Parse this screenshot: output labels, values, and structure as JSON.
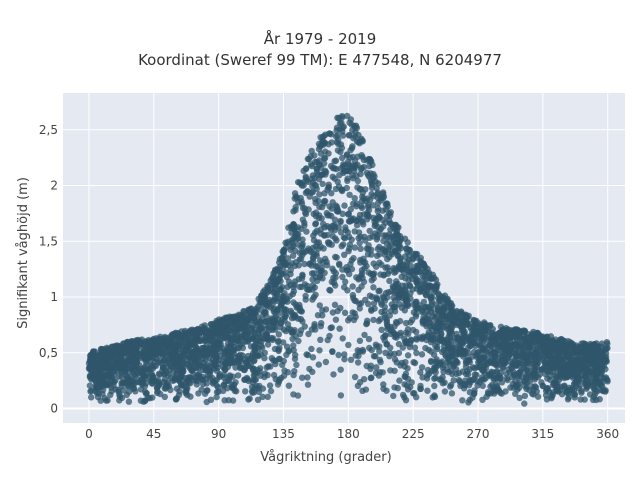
{
  "chart_data": {
    "type": "scatter",
    "title": "År 1979 - 2019",
    "subtitle": "Koordinat (Sweref 99 TM): E 477548, N 6204977",
    "xlabel": "Vågriktning (grader)",
    "ylabel": "Signifikant våghöjd (m)",
    "x_ticks": [
      {
        "value": 0,
        "label": "0"
      },
      {
        "value": 45,
        "label": "45"
      },
      {
        "value": 90,
        "label": "90"
      },
      {
        "value": 135,
        "label": "135"
      },
      {
        "value": 180,
        "label": "180"
      },
      {
        "value": 225,
        "label": "225"
      },
      {
        "value": 270,
        "label": "270"
      },
      {
        "value": 315,
        "label": "315"
      },
      {
        "value": 360,
        "label": "360"
      }
    ],
    "y_ticks": [
      {
        "value": 0,
        "label": "0"
      },
      {
        "value": 0.5,
        "label": "0,5"
      },
      {
        "value": 1,
        "label": "1"
      },
      {
        "value": 1.5,
        "label": "1,5"
      },
      {
        "value": 2,
        "label": "2"
      },
      {
        "value": 2.5,
        "label": "2,5"
      }
    ],
    "xlim": [
      -18,
      372
    ],
    "ylim": [
      -0.13,
      2.83
    ],
    "grid": true,
    "legend": "none",
    "marker_color": "#2f566b",
    "background_color": "#e5e9f2",
    "data_profile": {
      "x": [
        0,
        15,
        30,
        45,
        60,
        75,
        90,
        105,
        115,
        125,
        135,
        145,
        155,
        165,
        175,
        185,
        195,
        205,
        215,
        225,
        235,
        245,
        255,
        265,
        275,
        290,
        305,
        320,
        335,
        350,
        360
      ],
      "y_max": [
        0.52,
        0.55,
        0.62,
        0.63,
        0.68,
        0.72,
        0.8,
        0.85,
        0.95,
        1.12,
        1.45,
        2.05,
        2.35,
        2.5,
        2.7,
        2.55,
        2.25,
        1.92,
        1.62,
        1.42,
        1.3,
        1.05,
        0.9,
        0.82,
        0.77,
        0.72,
        0.7,
        0.65,
        0.6,
        0.58,
        0.6
      ],
      "y_min": [
        0.05,
        0.05,
        0.05,
        0.04,
        0.04,
        0.04,
        0.03,
        0.03,
        0.03,
        0.03,
        0.03,
        0.03,
        0.04,
        0.04,
        0.04,
        0.04,
        0.04,
        0.04,
        0.04,
        0.04,
        0.04,
        0.04,
        0.04,
        0.04,
        0.04,
        0.04,
        0.04,
        0.04,
        0.05,
        0.05,
        0.05
      ]
    }
  }
}
